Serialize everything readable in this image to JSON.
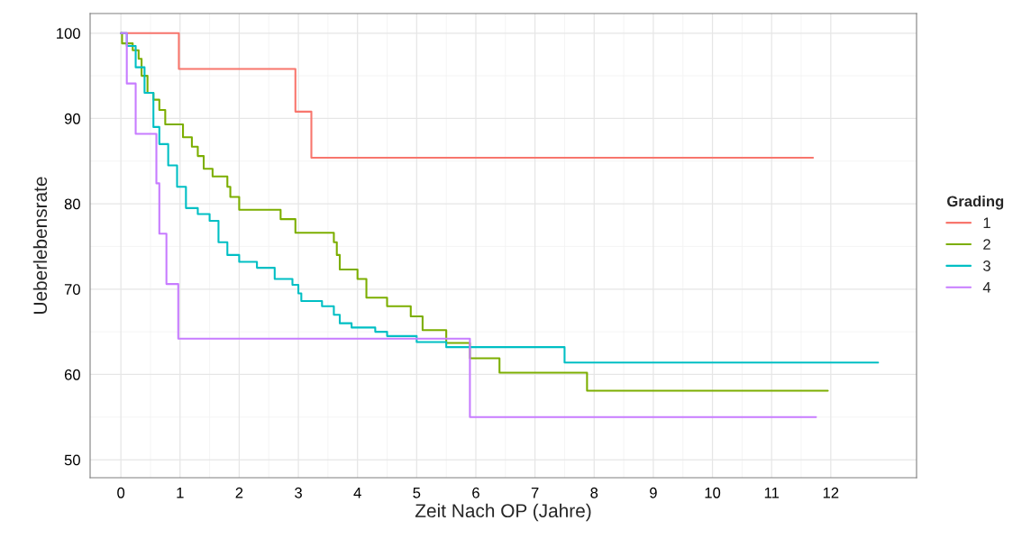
{
  "chart_data": {
    "type": "step",
    "xlabel": "Zeit Nach OP (Jahre)",
    "ylabel": "Ueberlebensrate",
    "legend_title": "Grading",
    "legend": "right",
    "grid": true,
    "xlim": [
      -0.52,
      13.45
    ],
    "ylim": [
      47.9,
      102.3
    ],
    "xticks": [
      0,
      1,
      2,
      3,
      4,
      5,
      6,
      7,
      8,
      9,
      10,
      11,
      12
    ],
    "yticks": [
      50,
      60,
      70,
      80,
      90,
      100
    ],
    "series": [
      {
        "name": "1",
        "color": "#f8766d",
        "x": [
          0,
          0.98,
          2.95,
          3.22,
          11.7
        ],
        "values": [
          100,
          95.8,
          90.8,
          85.4,
          85.4
        ]
      },
      {
        "name": "2",
        "color": "#7cae00",
        "x": [
          0,
          0.02,
          0.2,
          0.3,
          0.35,
          0.45,
          0.55,
          0.65,
          0.75,
          1.05,
          1.2,
          1.3,
          1.4,
          1.55,
          1.8,
          1.85,
          2.0,
          2.7,
          2.95,
          3.6,
          3.65,
          3.7,
          4.0,
          4.15,
          4.5,
          4.9,
          5.1,
          5.5,
          5.9,
          6.4,
          7.88,
          11.95
        ],
        "values": [
          100,
          98.8,
          98,
          97,
          95,
          93,
          92.2,
          91,
          89.3,
          87.8,
          86.7,
          85.6,
          84.1,
          83.2,
          82,
          80.8,
          79.3,
          78.2,
          76.6,
          75.5,
          74,
          72.3,
          71.2,
          69,
          68,
          66.8,
          65.2,
          63.7,
          61.9,
          60.2,
          58.1,
          58.1
        ]
      },
      {
        "name": "3",
        "color": "#00bfc4",
        "x": [
          0,
          0.1,
          0.25,
          0.4,
          0.55,
          0.65,
          0.8,
          0.95,
          1.1,
          1.3,
          1.5,
          1.65,
          1.8,
          2.0,
          2.3,
          2.6,
          2.9,
          3.0,
          3.05,
          3.4,
          3.6,
          3.7,
          3.9,
          4.3,
          4.5,
          5.0,
          5.5,
          7.5,
          12.8
        ],
        "values": [
          100,
          98.5,
          96,
          93,
          89,
          87,
          84.5,
          82,
          79.5,
          78.8,
          78,
          75.5,
          74,
          73.2,
          72.5,
          71.2,
          70.5,
          69.5,
          68.6,
          68,
          67,
          66,
          65.5,
          65,
          64.5,
          63.8,
          63.2,
          61.4,
          61.4
        ]
      },
      {
        "name": "4",
        "color": "#c77cff",
        "x": [
          0,
          0.1,
          0.25,
          0.6,
          0.65,
          0.77,
          0.97,
          5.9,
          11.75
        ],
        "values": [
          100,
          94.1,
          88.2,
          82.4,
          76.5,
          70.6,
          64.2,
          55,
          55
        ]
      }
    ]
  }
}
